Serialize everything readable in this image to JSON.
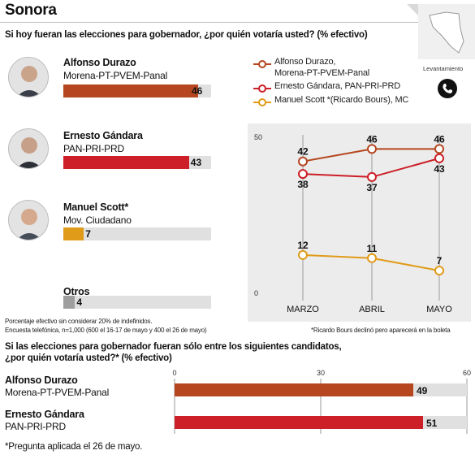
{
  "header": {
    "title": "Sonora",
    "question": "Si hoy fueran las elecciones para gobernador, ¿por quién votaría usted? (% efectivo)"
  },
  "chart_data": [
    {
      "type": "bar",
      "categories": [
        "Alfonso Durazo",
        "Ernesto Gándara",
        "Manuel Scott*",
        "Otros"
      ],
      "parties": [
        "Morena-PT-PVEM-Panal",
        "PAN-PRI-PRD",
        "Mov. Ciudadano",
        ""
      ],
      "values": [
        46,
        43,
        7,
        4
      ],
      "value_labels": [
        "46",
        "43",
        "7",
        "4"
      ],
      "colors": [
        "#b5461f",
        "#cc1f27",
        "#e09b18",
        "#9e9e9e"
      ],
      "xlim": [
        0,
        50
      ]
    },
    {
      "type": "line",
      "categories": [
        "MARZO",
        "ABRIL",
        "MAYO"
      ],
      "yticks": [
        "0",
        "50"
      ],
      "ylim": [
        0,
        50
      ],
      "series": [
        {
          "name": "Alfonso Durazo,",
          "name_line2": "Morena-PT-PVEM-Panal",
          "values": [
            42,
            46,
            46
          ],
          "labels": [
            "42",
            "46",
            "46"
          ],
          "color": "#b5461f"
        },
        {
          "name": "Ernesto Gándara, PAN-PRI-PRD",
          "values": [
            38,
            37,
            43
          ],
          "labels": [
            "38",
            "37",
            "43"
          ],
          "color": "#cc1f27"
        },
        {
          "name": "Manuel Scott *(Ricardo Bours), MC",
          "values": [
            12,
            11,
            7
          ],
          "labels": [
            "12",
            "11",
            "7"
          ],
          "color": "#e09b18"
        }
      ]
    },
    {
      "type": "bar",
      "categories": [
        "Alfonso Durazo",
        "Ernesto Gándara"
      ],
      "parties": [
        "Morena-PT-PVEM-Panal",
        "PAN-PRI-PRD"
      ],
      "values": [
        49,
        51
      ],
      "value_labels": [
        "49",
        "51"
      ],
      "colors": [
        "#b5461f",
        "#cc1f27"
      ],
      "xticks": [
        "0",
        "30",
        "60"
      ],
      "xlim": [
        0,
        60
      ]
    }
  ],
  "notes": {
    "levantamiento": "Levantamiento",
    "effective": "Porcentaje efectivo sin considerar 20% de indefinidos.",
    "survey": "Encuesta telefónica, n=1,000 (600 el 16-17 de mayo y 400 el 26 de mayo)",
    "bours": "*Ricardo Bours declinó pero aparecerá en la boleta"
  },
  "second": {
    "question_line1": "Si las elecciones para gobernador fueran sólo entre los siguientes candidatos,",
    "question_line2": "¿por quién votaría usted?* (% efectivo)"
  },
  "footer": "*Pregunta aplicada el 26 de mayo."
}
